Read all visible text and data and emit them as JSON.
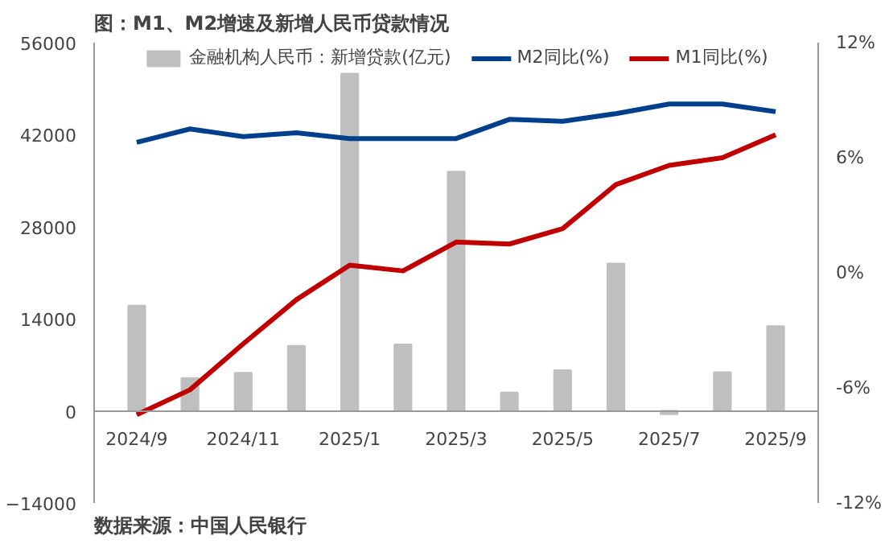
{
  "chart_data": {
    "type": "bar",
    "title": "图：M1、M2增速及新增人民币贷款情况",
    "categories": [
      "2024/9",
      null,
      "2024/11",
      null,
      "2025/1",
      null,
      "2025/3",
      null,
      "2025/5",
      null,
      "2025/7",
      null,
      "2025/9"
    ],
    "series": [
      {
        "name": "金融机构人民币：新增贷款(亿元)",
        "color": "#bfbfbf",
        "values": [
          16000,
          5000,
          5800,
          9900,
          51300,
          10100,
          36400,
          2800,
          6200,
          22400,
          -500,
          5900,
          12900
        ]
      },
      {
        "name": "M2同比(%)",
        "type": "line",
        "axis": "y2",
        "color": "#003f8c",
        "values": [
          6.8,
          7.5,
          7.1,
          7.3,
          7.0,
          7.0,
          7.0,
          8.0,
          7.9,
          8.3,
          8.8,
          8.8,
          8.4
        ]
      },
      {
        "name": "M1同比(%)",
        "type": "line",
        "axis": "y2",
        "color": "#c00000",
        "values": [
          -7.4,
          -6.1,
          -3.7,
          -1.4,
          0.4,
          0.1,
          1.6,
          1.5,
          2.3,
          4.6,
          5.6,
          6.0,
          7.2
        ]
      }
    ],
    "ylim": [
      -14000,
      56000
    ],
    "yticks": [
      -14000,
      0,
      14000,
      28000,
      42000,
      56000
    ],
    "y2lim": [
      -12,
      12
    ],
    "y2ticks": [
      {
        "value": -12,
        "label": "-12%"
      },
      {
        "value": -6,
        "label": "-6%"
      },
      {
        "value": 0,
        "label": "0%"
      },
      {
        "value": 6,
        "label": "6%"
      },
      {
        "value": 12,
        "label": "12%"
      }
    ],
    "legend": "top",
    "grid": false,
    "line_style": "solid",
    "marker": "none",
    "annotations": [
      "数据来源：中国人民银行"
    ]
  }
}
